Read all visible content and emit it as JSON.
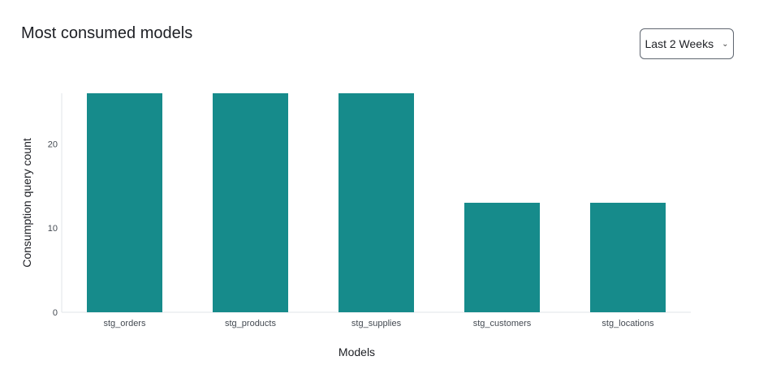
{
  "title": "Most consumed models",
  "dropdown": {
    "selected": "Last 2 Weeks",
    "icon": "chevron-down-icon"
  },
  "chart_data": {
    "type": "bar",
    "categories": [
      "stg_orders",
      "stg_products",
      "stg_supplies",
      "stg_customers",
      "stg_locations"
    ],
    "values": [
      26,
      26,
      26,
      13,
      13
    ],
    "xlabel": "Models",
    "ylabel": "Consumption query count",
    "ylim": [
      0,
      26
    ],
    "yticks": [
      0,
      10,
      20
    ],
    "grid": false,
    "bar_color": "#168b8b"
  }
}
